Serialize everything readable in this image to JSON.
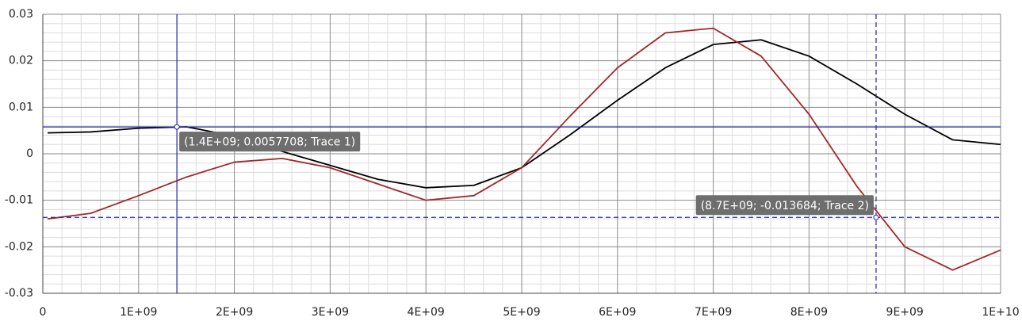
{
  "chart_data": {
    "type": "line",
    "x": [
      50000000,
      500000000,
      1000000000,
      1500000000,
      2000000000,
      2500000000,
      3000000000,
      3500000000,
      4000000000,
      4500000000,
      5000000000,
      5500000000,
      6000000000,
      6500000000,
      7000000000,
      7500000000,
      8000000000,
      8500000000,
      9000000000,
      9500000000,
      10000000000
    ],
    "series": [
      {
        "color": "#000000",
        "values": [
          0.0045,
          0.0047,
          0.0055,
          0.0058,
          0.0038,
          0.0005,
          -0.0025,
          -0.0055,
          -0.0073,
          -0.0068,
          -0.003,
          0.004,
          0.0115,
          0.0185,
          0.0235,
          0.0245,
          0.021,
          0.015,
          0.0085,
          0.003,
          0.002
        ]
      },
      {
        "color": "#a02828",
        "values": [
          -0.014,
          -0.0128,
          -0.009,
          -0.005,
          -0.0018,
          -0.001,
          -0.003,
          -0.0065,
          -0.01,
          -0.009,
          -0.003,
          0.008,
          0.0185,
          0.026,
          0.027,
          0.021,
          0.0085,
          -0.007,
          -0.02,
          -0.025,
          -0.0207
        ]
      }
    ],
    "xlim": [
      0,
      10000000000
    ],
    "xticks": [
      0,
      {
        "value": 1000000000,
        "label": "1E+09"
      },
      {
        "value": 2000000000,
        "label": "2E+09"
      },
      {
        "value": 3000000000,
        "label": "3E+09"
      },
      {
        "value": 4000000000,
        "label": "4E+09"
      },
      {
        "value": 5000000000,
        "label": "5E+09"
      },
      {
        "value": 6000000000,
        "label": "6E+09"
      },
      {
        "value": 7000000000,
        "label": "7E+09"
      },
      {
        "value": 8000000000,
        "label": "8E+09"
      },
      {
        "value": 9000000000,
        "label": "9E+09"
      },
      {
        "value": 10000000000,
        "label": "1E+10"
      }
    ],
    "ylim": [
      -0.03,
      0.03
    ],
    "yticks": [
      -0.03,
      -0.02,
      -0.01,
      0,
      0.01,
      0.02,
      0.03
    ],
    "grid": true,
    "cursors": [
      {
        "x": 1400000000,
        "y": 0.0057708,
        "label": "(1.4E+09; 0.0057708; Trace 1)",
        "color": "#2222aa",
        "dashed": false
      },
      {
        "x": 8700000000,
        "y": -0.013684,
        "label": "(8.7E+09; -0.013684; Trace 2)",
        "color": "#2222aa",
        "dashed": true
      }
    ]
  }
}
